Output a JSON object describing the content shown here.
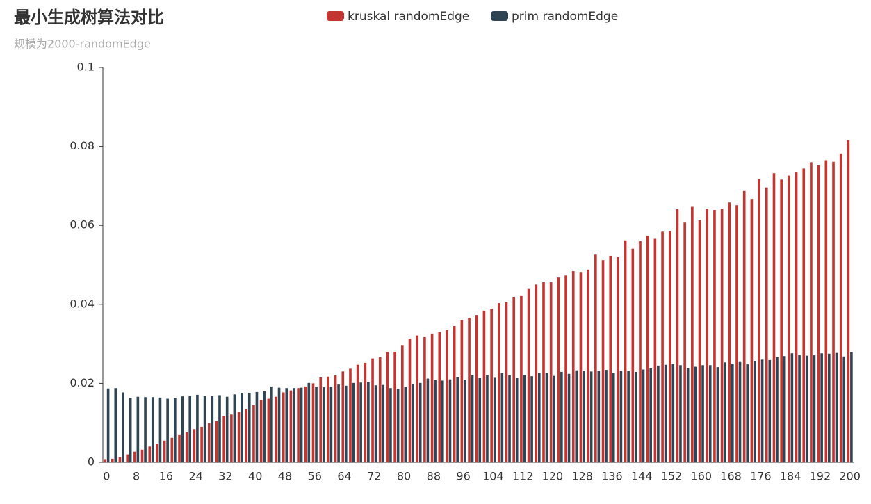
{
  "chart_data": {
    "type": "bar",
    "title": "最小生成树算法对比",
    "subtitle": "规模为2000-randomEdge",
    "categories": [
      "0",
      null,
      null,
      null,
      "8",
      null,
      null,
      null,
      "16",
      null,
      null,
      null,
      "24",
      null,
      null,
      null,
      "32",
      null,
      null,
      null,
      "40",
      null,
      null,
      null,
      "48",
      null,
      null,
      null,
      "56",
      null,
      null,
      null,
      "64",
      null,
      null,
      null,
      "72",
      null,
      null,
      null,
      "80",
      null,
      null,
      null,
      "88",
      null,
      null,
      null,
      "96",
      null,
      null,
      null,
      "104",
      null,
      null,
      null,
      "112",
      null,
      null,
      null,
      "120",
      null,
      null,
      null,
      "128",
      null,
      null,
      null,
      "136",
      null,
      null,
      null,
      "144",
      null,
      null,
      null,
      "152",
      null,
      null,
      null,
      "160",
      null,
      null,
      null,
      "168",
      null,
      null,
      null,
      "176",
      null,
      null,
      null,
      "184",
      null,
      null,
      null,
      "192",
      null,
      null,
      null,
      "200"
    ],
    "series": [
      {
        "name": "kruskal randomEdge",
        "color": "#c23531",
        "values": [
          0.0008,
          0.0009,
          0.0013,
          0.002,
          0.0027,
          0.0032,
          0.004,
          0.0047,
          0.0055,
          0.0062,
          0.0069,
          0.0076,
          0.0084,
          0.009,
          0.01,
          0.0104,
          0.0117,
          0.0121,
          0.0128,
          0.0134,
          0.0145,
          0.0157,
          0.0161,
          0.0166,
          0.0177,
          0.0182,
          0.0188,
          0.0192,
          0.02,
          0.0215,
          0.0217,
          0.022,
          0.023,
          0.0237,
          0.0247,
          0.0252,
          0.0263,
          0.0266,
          0.028,
          0.028,
          0.0297,
          0.0313,
          0.0321,
          0.0317,
          0.0326,
          0.033,
          0.0335,
          0.0345,
          0.036,
          0.0366,
          0.0373,
          0.0384,
          0.0389,
          0.0403,
          0.0405,
          0.0419,
          0.0421,
          0.0439,
          0.045,
          0.0456,
          0.0456,
          0.0468,
          0.0473,
          0.0484,
          0.0482,
          0.0488,
          0.0526,
          0.0512,
          0.0523,
          0.052,
          0.0562,
          0.0541,
          0.056,
          0.0574,
          0.0566,
          0.0584,
          0.0585,
          0.0641,
          0.0607,
          0.0647,
          0.0613,
          0.0642,
          0.0639,
          0.0642,
          0.0658,
          0.0651,
          0.0687,
          0.0667,
          0.0717,
          0.0696,
          0.0732,
          0.0716,
          0.0726,
          0.0734,
          0.0744,
          0.076,
          0.0752,
          0.0765,
          0.0761,
          0.0782,
          0.0816
        ]
      },
      {
        "name": "prim randomEdge",
        "color": "#2f4554",
        "values": [
          0.0187,
          0.0188,
          0.0177,
          0.0163,
          0.0166,
          0.0165,
          0.0165,
          0.0164,
          0.0161,
          0.0162,
          0.0167,
          0.0168,
          0.0171,
          0.0168,
          0.0168,
          0.017,
          0.0166,
          0.0172,
          0.0176,
          0.0176,
          0.0178,
          0.018,
          0.0192,
          0.0189,
          0.0188,
          0.0188,
          0.0189,
          0.0201,
          0.0192,
          0.019,
          0.0192,
          0.0197,
          0.0194,
          0.0201,
          0.0202,
          0.0203,
          0.0195,
          0.0196,
          0.0188,
          0.0186,
          0.0192,
          0.0199,
          0.0201,
          0.0212,
          0.0209,
          0.0207,
          0.021,
          0.0215,
          0.0209,
          0.022,
          0.0213,
          0.0221,
          0.0214,
          0.0226,
          0.022,
          0.0213,
          0.0221,
          0.0218,
          0.0227,
          0.0226,
          0.0219,
          0.0229,
          0.0224,
          0.0233,
          0.0232,
          0.023,
          0.0232,
          0.0234,
          0.0227,
          0.0232,
          0.0231,
          0.0229,
          0.0235,
          0.0238,
          0.0245,
          0.0247,
          0.0249,
          0.0246,
          0.0239,
          0.0242,
          0.0246,
          0.0246,
          0.0241,
          0.0253,
          0.025,
          0.0254,
          0.0248,
          0.0257,
          0.026,
          0.0259,
          0.0266,
          0.0269,
          0.0276,
          0.0271,
          0.027,
          0.0271,
          0.0276,
          0.0275,
          0.0277,
          0.0268,
          0.0279
        ]
      }
    ],
    "ylim": [
      0,
      0.1
    ],
    "yticks": [
      0,
      0.02,
      0.04,
      0.06,
      0.08,
      0.1
    ],
    "grid": false
  }
}
